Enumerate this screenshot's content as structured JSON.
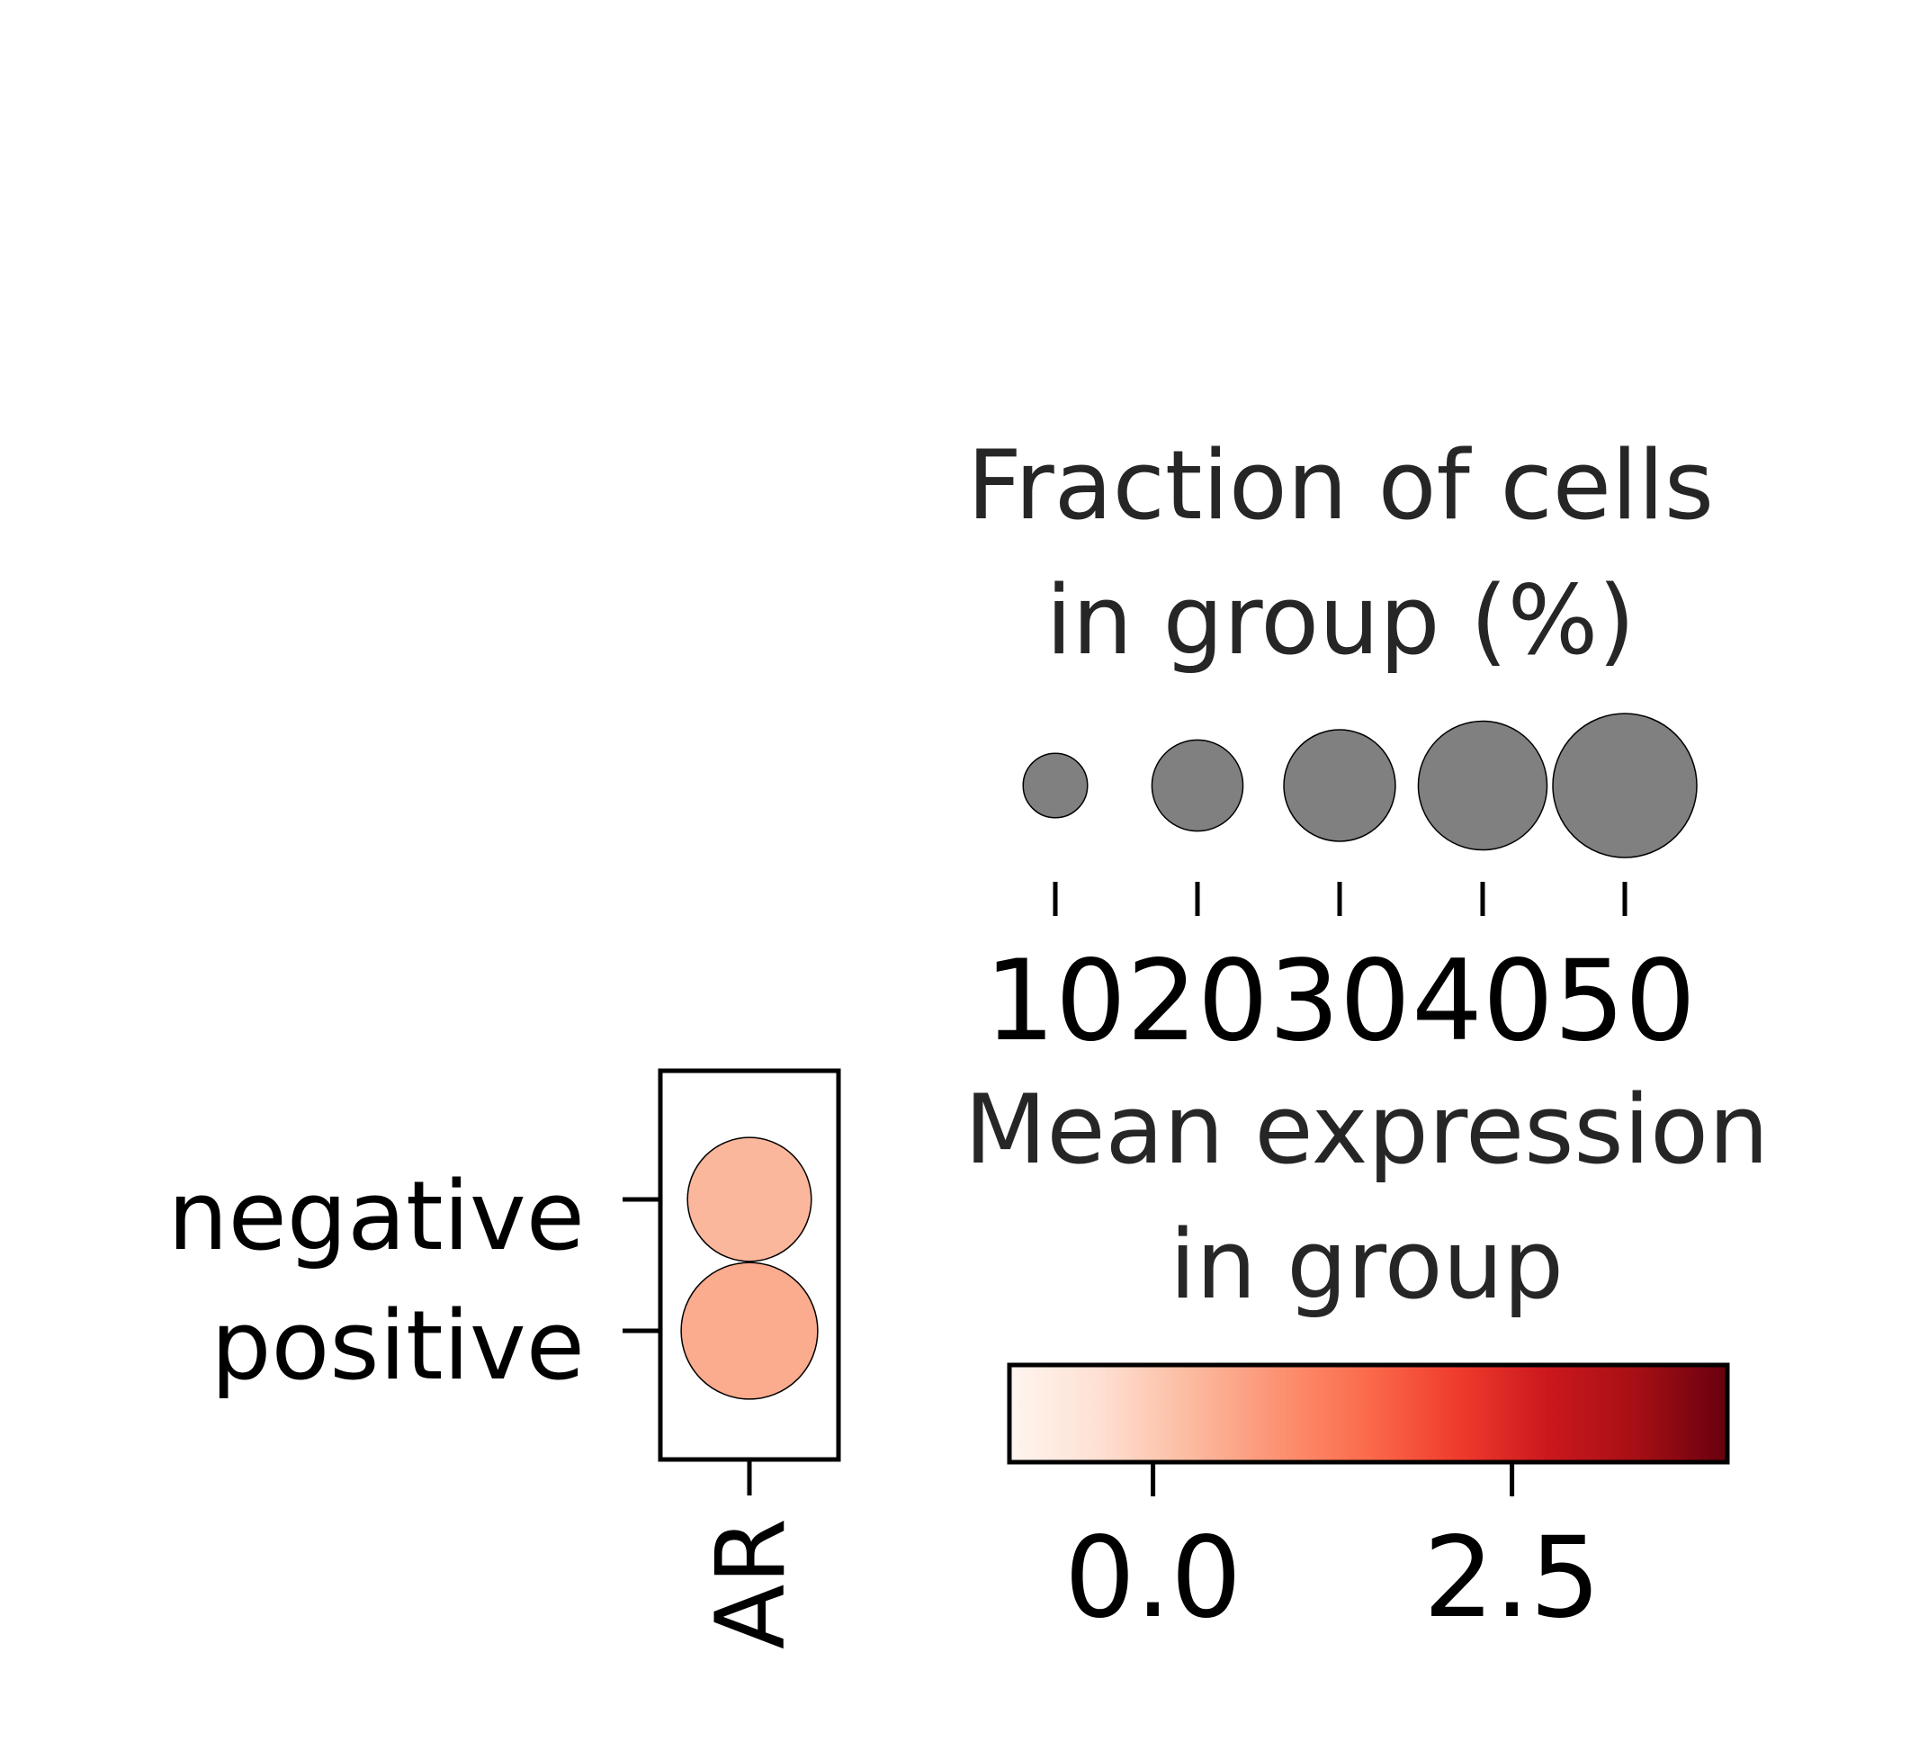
{
  "chart_data": {
    "type": "dotplot",
    "genes": [
      "AR"
    ],
    "groups": [
      "negative",
      "positive"
    ],
    "points": [
      {
        "group": "negative",
        "gene": "AR",
        "fraction_pct": 37,
        "mean_expression": 0.8,
        "color": "#fbb79c"
      },
      {
        "group": "positive",
        "gene": "AR",
        "fraction_pct": 45,
        "mean_expression": 0.9,
        "color": "#fbab8e"
      }
    ],
    "size_legend": {
      "title_lines": [
        "Fraction of cells",
        "in group (%)"
      ],
      "values": [
        10,
        20,
        30,
        40,
        50
      ],
      "tick_labels": [
        "10",
        "20",
        "30",
        "40",
        "50"
      ],
      "dot_color": "#808080"
    },
    "color_legend": {
      "title_lines": [
        "Mean expression",
        "in group"
      ],
      "colormap": "Reds",
      "range": [
        -1,
        4
      ],
      "ticks": [
        0.0,
        2.5
      ],
      "tick_labels": [
        "0.0",
        "2.5"
      ]
    }
  }
}
